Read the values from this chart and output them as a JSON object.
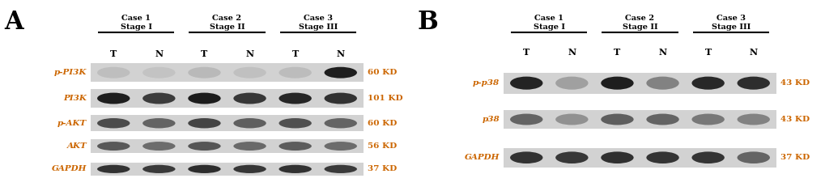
{
  "fig_width": 10.2,
  "fig_height": 2.36,
  "dpi": 100,
  "bg_color": "#ffffff",
  "panel_A": {
    "label": "A",
    "label_color": "#000000",
    "label_fontsize": 22,
    "label_bold": true,
    "cases": [
      "Case 1\nStage I",
      "Case 2\nStage II",
      "Case 3\nStage III"
    ],
    "lanes": [
      "T",
      "N"
    ],
    "row_labels": [
      "p-PI3K",
      "PI3K",
      "p-AKT",
      "AKT",
      "GAPDH"
    ],
    "kd_labels": [
      "60 KD",
      "101 KD",
      "60 KD",
      "56 KD",
      "37 KD"
    ],
    "row_label_color": "#cc6600",
    "kd_label_color": "#cc6600",
    "header_color": "#000000",
    "band_colors": {
      "p-PI3K": [
        [
          [
            180,
            180,
            180
          ],
          [
            200,
            200,
            200
          ]
        ],
        [
          [
            175,
            175,
            175
          ],
          [
            190,
            190,
            190
          ]
        ],
        [
          [
            185,
            185,
            185
          ],
          [
            50,
            50,
            50
          ]
        ]
      ],
      "PI3K": [
        [
          [
            30,
            30,
            30
          ],
          [
            60,
            60,
            60
          ]
        ],
        [
          [
            25,
            25,
            25
          ],
          [
            55,
            55,
            55
          ]
        ],
        [
          [
            40,
            40,
            40
          ],
          [
            55,
            55,
            55
          ]
        ]
      ],
      "p-AKT": [
        [
          [
            80,
            80,
            80
          ],
          [
            100,
            100,
            100
          ]
        ],
        [
          [
            70,
            70,
            70
          ],
          [
            95,
            95,
            95
          ]
        ],
        [
          [
            85,
            85,
            85
          ],
          [
            100,
            100,
            100
          ]
        ]
      ],
      "AKT": [
        [
          [
            90,
            90,
            90
          ],
          [
            110,
            110,
            110
          ]
        ],
        [
          [
            85,
            85,
            85
          ],
          [
            105,
            105,
            105
          ]
        ],
        [
          [
            95,
            95,
            95
          ],
          [
            110,
            110,
            110
          ]
        ]
      ],
      "GAPDH": [
        [
          [
            50,
            50,
            50
          ],
          [
            60,
            60,
            60
          ]
        ],
        [
          [
            45,
            45,
            45
          ],
          [
            55,
            55,
            55
          ]
        ],
        [
          [
            50,
            50,
            50
          ],
          [
            60,
            60,
            60
          ]
        ]
      ]
    }
  },
  "panel_B": {
    "label": "B",
    "label_color": "#000000",
    "label_fontsize": 22,
    "label_bold": true,
    "cases": [
      "Case 1\nStage I",
      "Case 2\nStage II",
      "Case 3\nStage III"
    ],
    "lanes": [
      "T",
      "N"
    ],
    "row_labels": [
      "p-p38",
      "p38",
      "GAPDH"
    ],
    "kd_labels": [
      "43 KD",
      "43 KD",
      "37 KD"
    ],
    "row_label_color": "#cc6600",
    "kd_label_color": "#cc6600",
    "header_color": "#000000"
  }
}
